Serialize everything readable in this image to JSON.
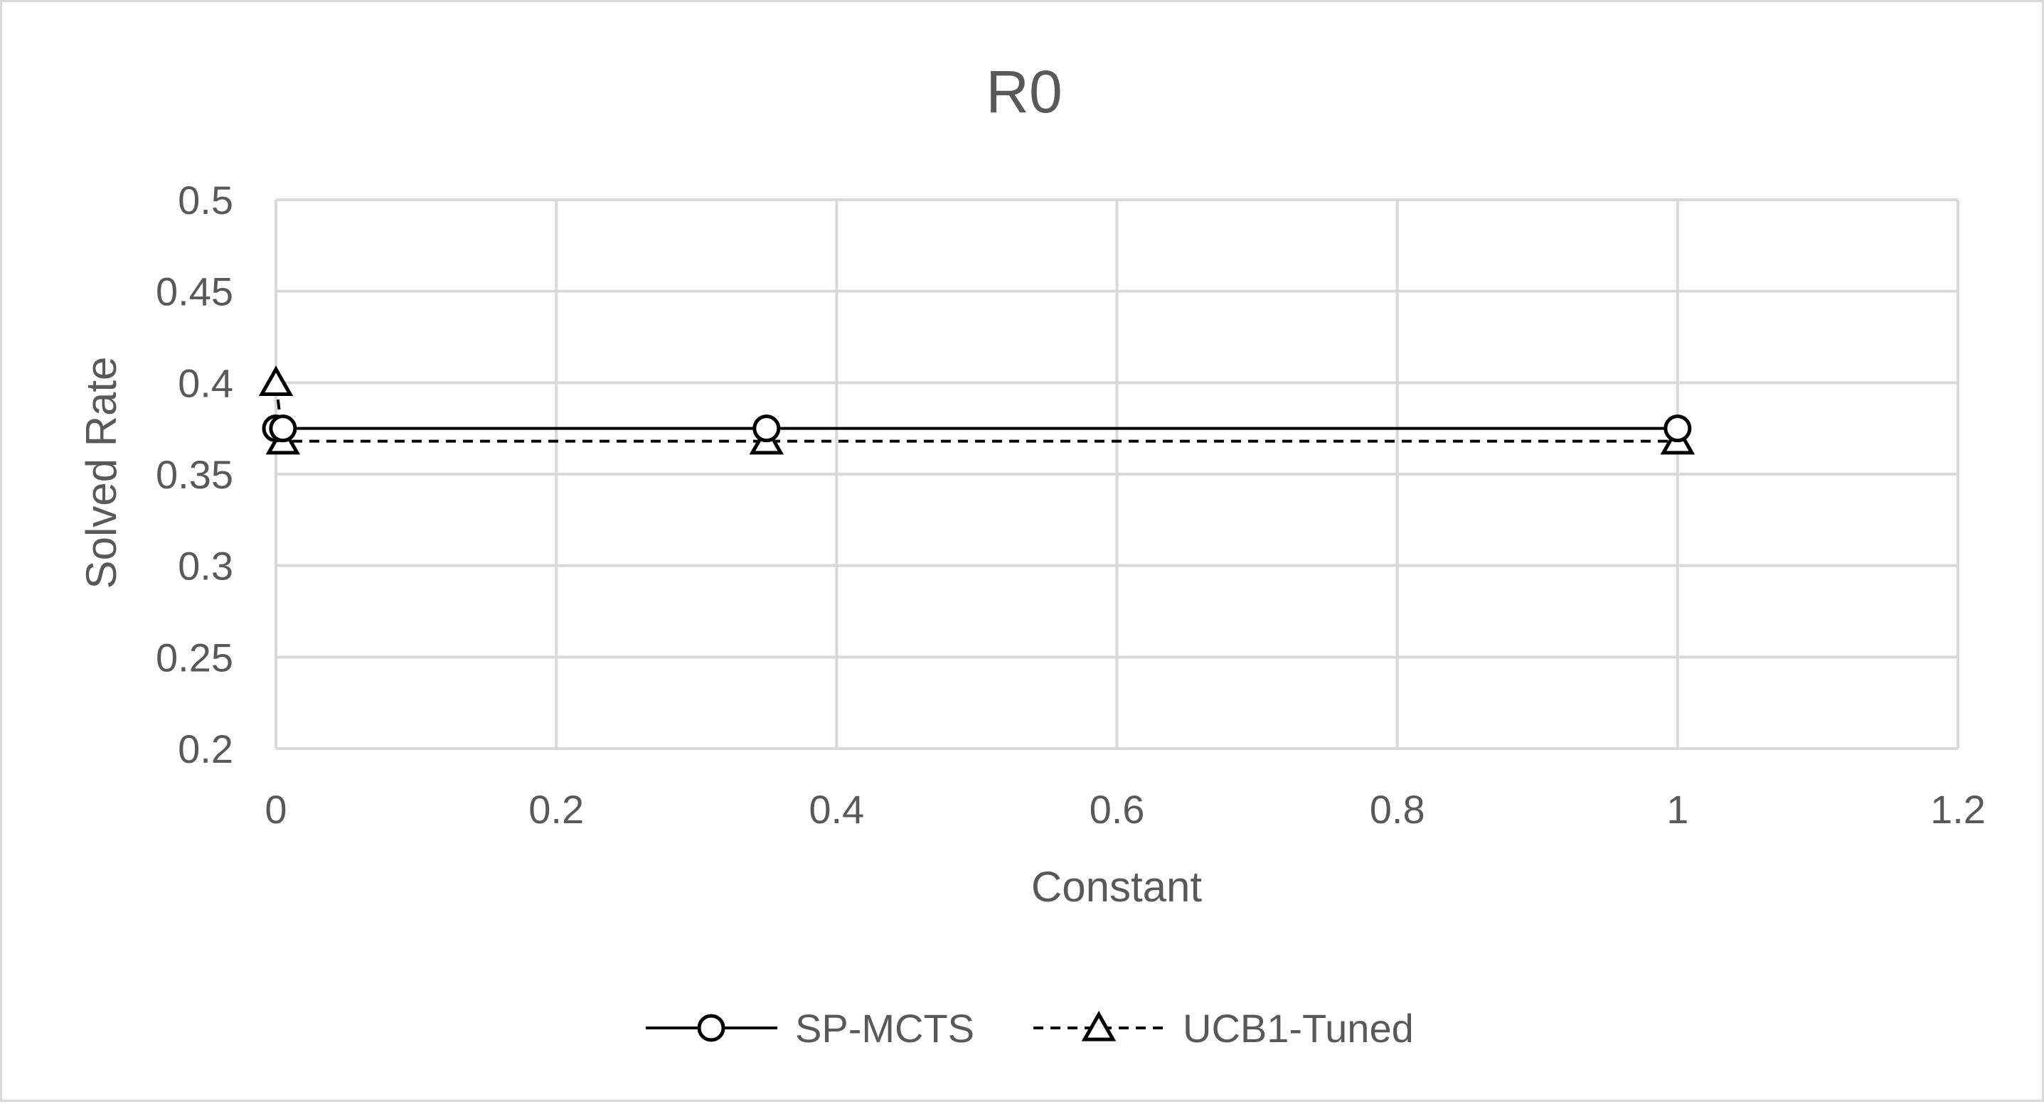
{
  "chart_data": {
    "type": "scatter",
    "title": "R0",
    "xlabel": "Constant",
    "ylabel": "Solved Rate",
    "xlim": [
      0,
      1.2
    ],
    "ylim": [
      0.2,
      0.5
    ],
    "x_ticks": [
      "0",
      "0.2",
      "0.4",
      "0.6",
      "0.8",
      "1",
      "1.2"
    ],
    "y_ticks": [
      "0.2",
      "0.25",
      "0.3",
      "0.35",
      "0.4",
      "0.45",
      "0.5"
    ],
    "grid": true,
    "legend_position": "bottom",
    "series": [
      {
        "name": "SP-MCTS",
        "line": "solid",
        "marker": "circle",
        "color": "#000000",
        "points": [
          {
            "x": 0,
            "y": 0.375
          },
          {
            "x": 0.005,
            "y": 0.375
          },
          {
            "x": 0.35,
            "y": 0.375
          },
          {
            "x": 1,
            "y": 0.375
          }
        ]
      },
      {
        "name": "UCB1-Tuned",
        "line": "dashed",
        "marker": "triangle",
        "color": "#000000",
        "points": [
          {
            "x": 0,
            "y": 0.4
          },
          {
            "x": 0.005,
            "y": 0.368
          },
          {
            "x": 0.35,
            "y": 0.368
          },
          {
            "x": 1,
            "y": 0.368
          }
        ]
      }
    ]
  },
  "colors": {
    "gridline": "#d9d9d9",
    "text": "#595959",
    "series": "#000000"
  }
}
